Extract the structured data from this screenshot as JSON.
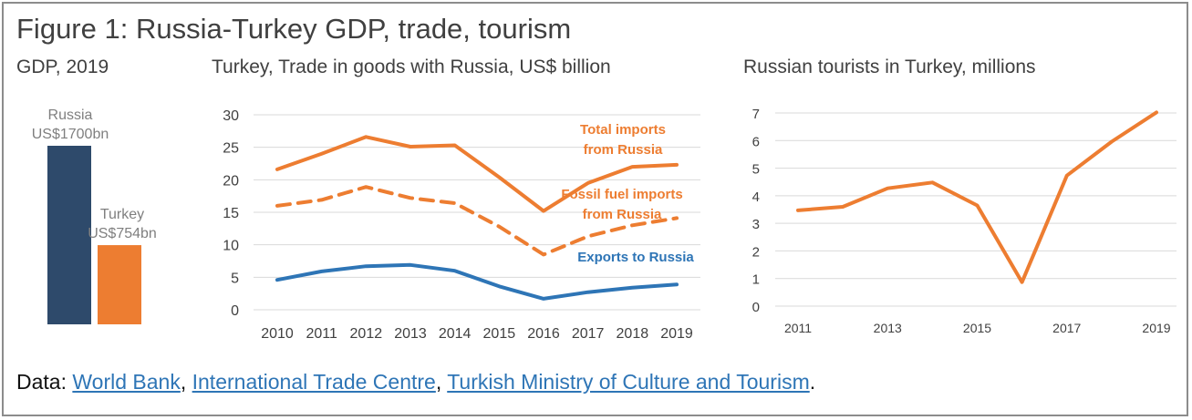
{
  "title": "Figure 1: Russia-Turkey GDP, trade, tourism",
  "footer": {
    "prefix": "Data: ",
    "links": [
      "World Bank",
      "International Trade Centre",
      "Turkish Ministry of Culture and Tourism"
    ],
    "sep": ", ",
    "suffix": "."
  },
  "colors": {
    "navy": "#2e4a6b",
    "orange": "#ed7d31",
    "blue": "#2e75b6",
    "grid": "#d9d9d9",
    "axis": "#404040"
  },
  "chart_data": [
    {
      "type": "bar",
      "title": "GDP, 2019",
      "categories": [
        "Russia",
        "Turkey"
      ],
      "value_labels": [
        "US$1700bn",
        "US$754bn"
      ],
      "values": [
        1700,
        754
      ],
      "units": "US$ bn",
      "colors": [
        "#2e4a6b",
        "#ed7d31"
      ]
    },
    {
      "type": "line",
      "title": "Turkey, Trade in goods with Russia, US$ billion",
      "x": [
        2010,
        2011,
        2012,
        2013,
        2014,
        2015,
        2016,
        2017,
        2018,
        2019
      ],
      "ylim": [
        0,
        30
      ],
      "yticks": [
        0,
        5,
        10,
        15,
        20,
        25,
        30
      ],
      "grid": true,
      "series": [
        {
          "name": "Total imports from Russia",
          "label_lines": [
            "Total imports",
            "from Russia"
          ],
          "color": "#ed7d31",
          "dashed": false,
          "values": [
            21.6,
            24.0,
            26.6,
            25.1,
            25.3,
            20.4,
            15.2,
            19.5,
            22.0,
            22.3
          ]
        },
        {
          "name": "Fossil fuel imports from Russia",
          "label_lines": [
            "Fossil fuel imports",
            "from Russia"
          ],
          "color": "#ed7d31",
          "dashed": true,
          "values": [
            16.0,
            16.9,
            18.9,
            17.2,
            16.4,
            12.8,
            8.5,
            11.3,
            13.0,
            14.1
          ]
        },
        {
          "name": "Exports to Russia",
          "label_lines": [
            "Exports to Russia"
          ],
          "color": "#2e75b6",
          "dashed": false,
          "values": [
            4.6,
            5.9,
            6.7,
            6.9,
            6.0,
            3.6,
            1.7,
            2.7,
            3.4,
            3.9
          ]
        }
      ]
    },
    {
      "type": "line",
      "title": "Russian tourists in Turkey, millions",
      "x": [
        2011,
        2012,
        2013,
        2014,
        2015,
        2016,
        2017,
        2018,
        2019
      ],
      "xtick_labels": [
        "2011",
        "2013",
        "2015",
        "2017",
        "2019"
      ],
      "ylim": [
        0,
        7
      ],
      "yticks": [
        0,
        1,
        2,
        3,
        4,
        5,
        6,
        7
      ],
      "grid": true,
      "series": [
        {
          "color": "#ed7d31",
          "values": [
            3.47,
            3.6,
            4.27,
            4.48,
            3.65,
            0.87,
            4.73,
            5.96,
            7.02
          ]
        }
      ]
    }
  ]
}
